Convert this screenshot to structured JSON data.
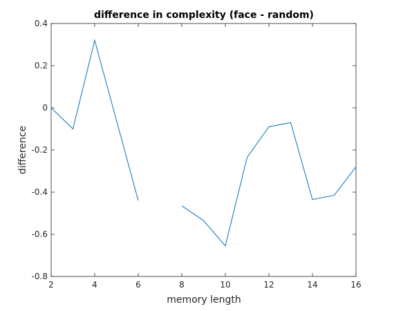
{
  "chart_data": {
    "type": "line",
    "title": "difference in complexity (face - random)",
    "xlabel": "memory length",
    "ylabel": "difference",
    "xlim": [
      2,
      16
    ],
    "ylim": [
      -0.8,
      0.4
    ],
    "xticks": [
      2,
      4,
      6,
      8,
      10,
      12,
      14,
      16
    ],
    "yticks": [
      -0.8,
      -0.6,
      -0.4,
      -0.2,
      0,
      0.2,
      0.4
    ],
    "xtick_labels": [
      "2",
      "4",
      "6",
      "8",
      "10",
      "12",
      "14",
      "16"
    ],
    "ytick_labels": [
      "-0.8",
      "-0.6",
      "-0.4",
      "-0.2",
      "0",
      "0.2",
      "0.4"
    ],
    "grid": false,
    "series": [
      {
        "color": "#0072bd",
        "x": [
          2,
          3,
          4,
          5,
          6,
          7,
          8,
          9,
          10,
          11,
          12,
          13,
          14,
          15,
          16
        ],
        "y": [
          0.0,
          -0.1,
          0.32,
          -0.06,
          -0.44,
          null,
          -0.465,
          -0.535,
          -0.655,
          -0.235,
          -0.09,
          -0.07,
          -0.435,
          -0.415,
          -0.28
        ]
      }
    ]
  }
}
